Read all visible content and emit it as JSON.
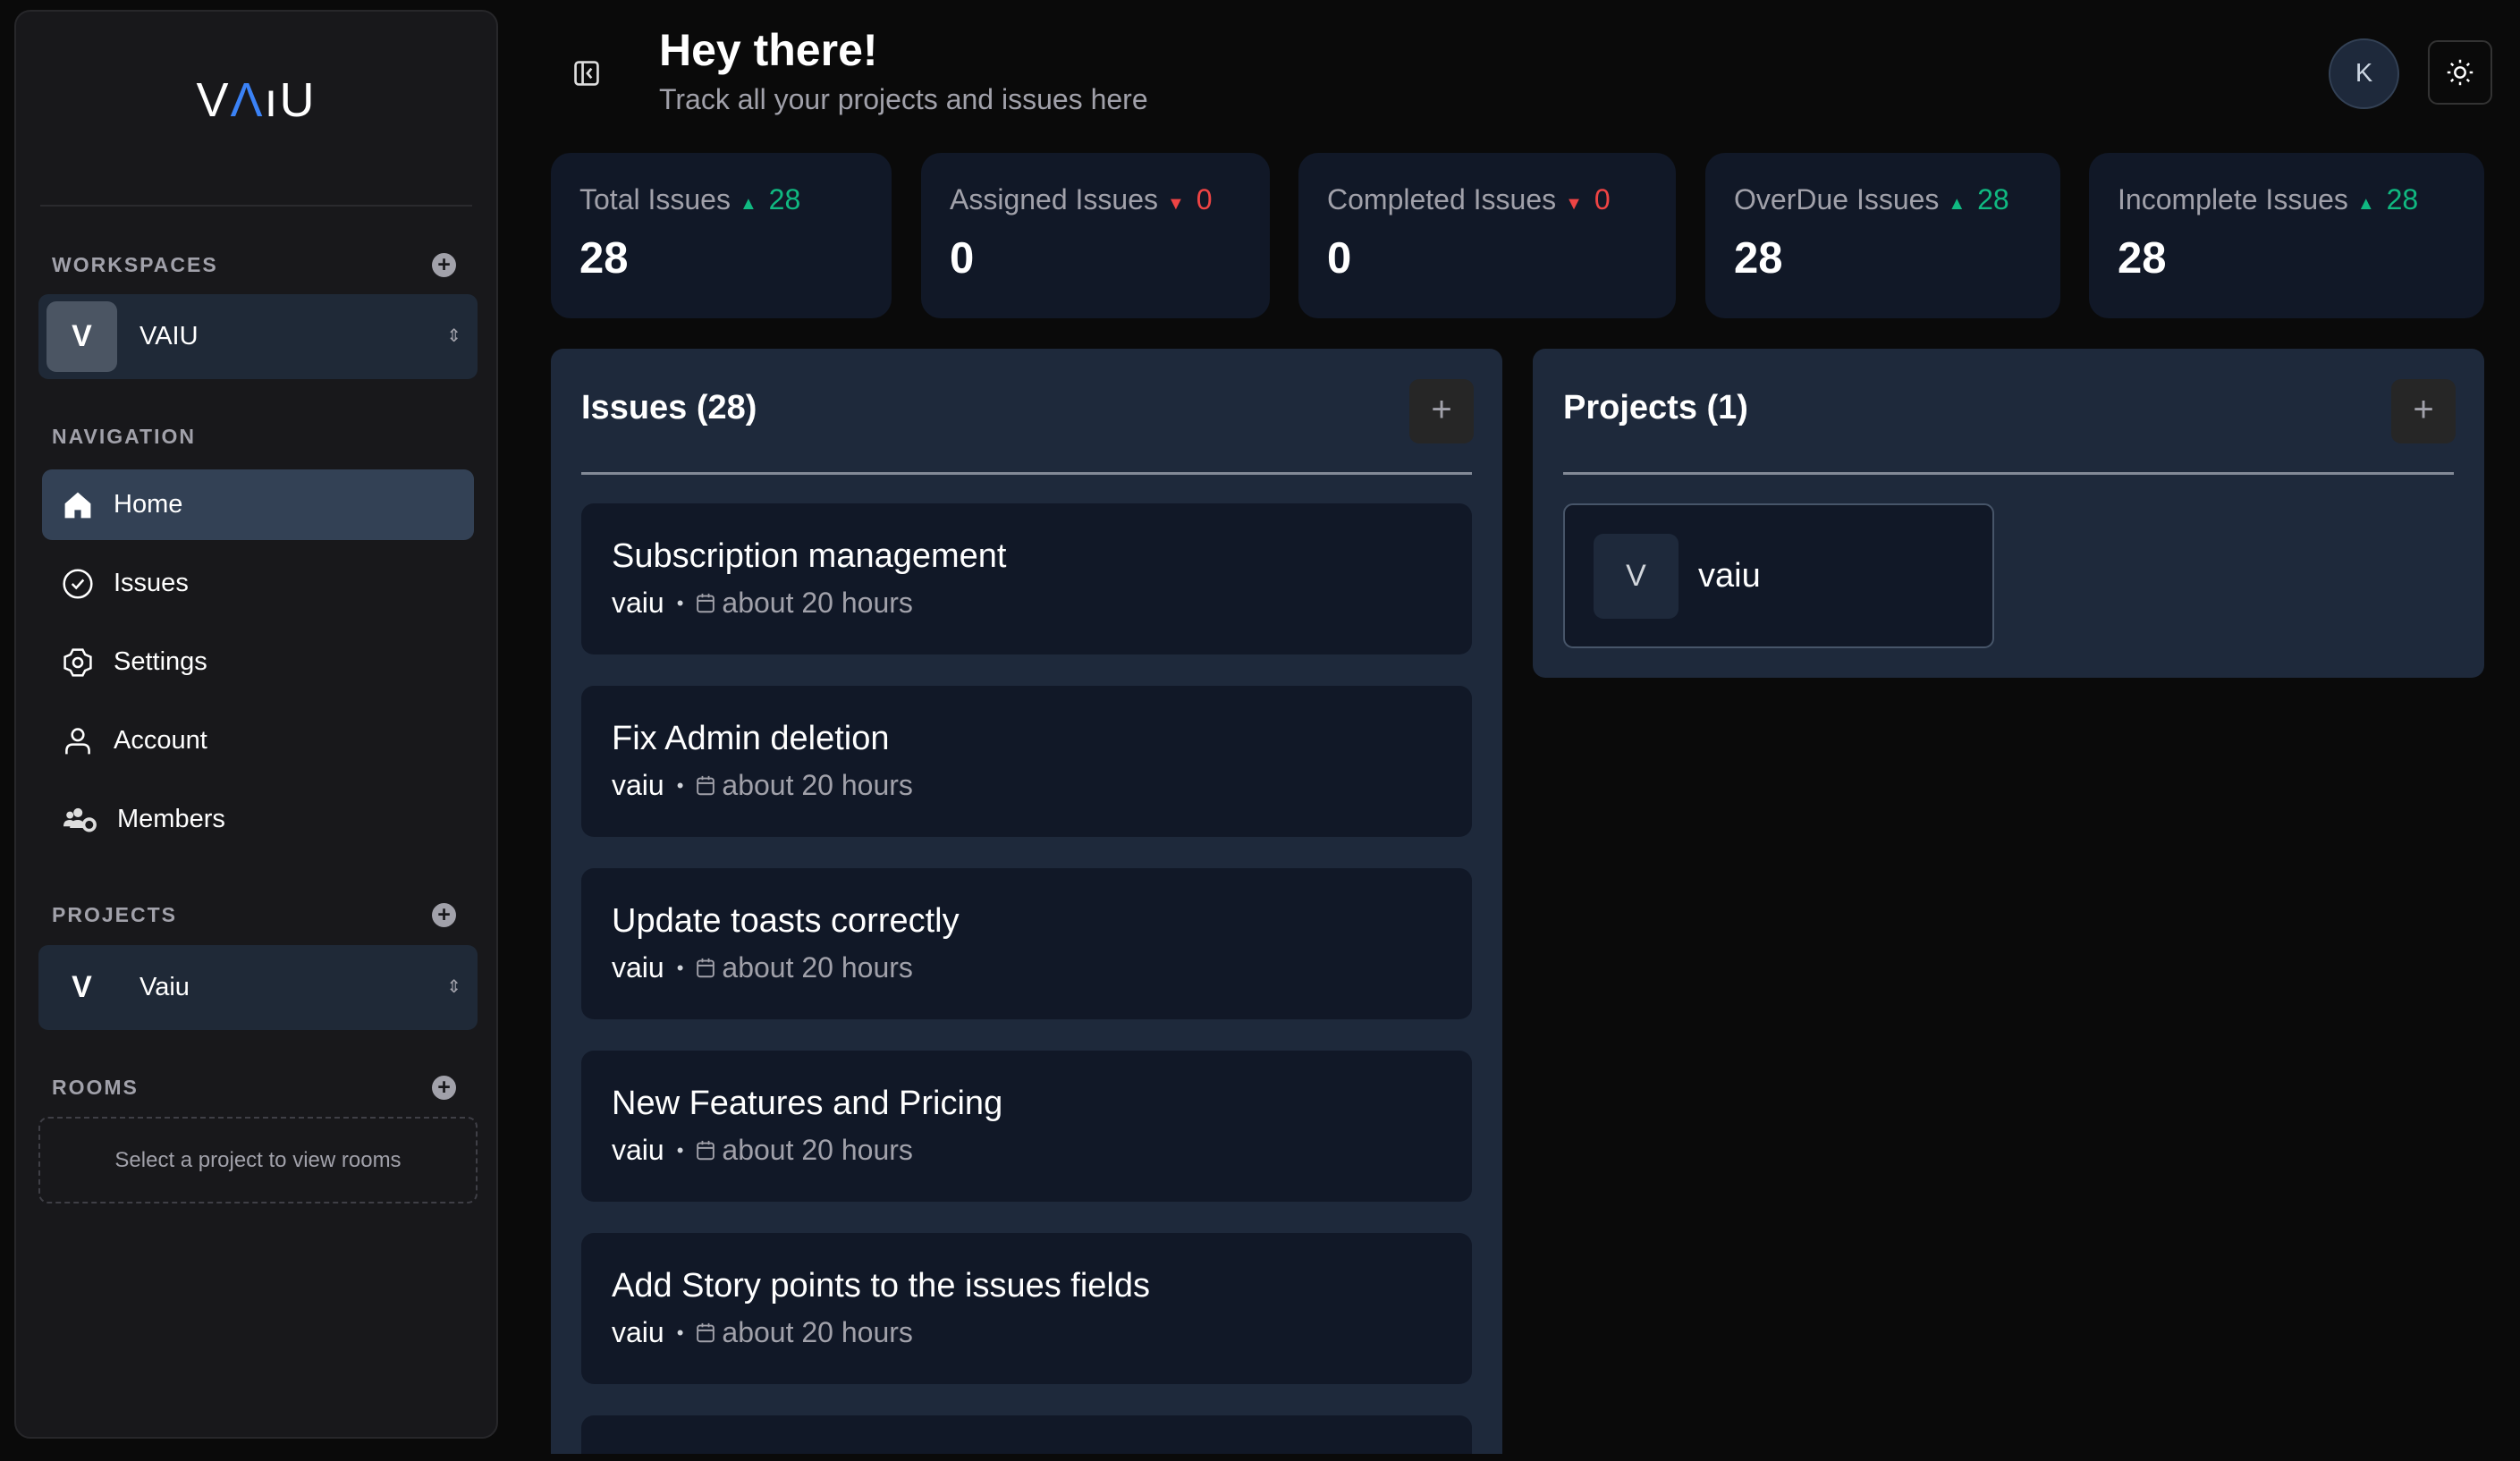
{
  "sidebar": {
    "logo": {
      "pre": "V",
      "accent": "Λ",
      "post": "ıU"
    },
    "workspaces": {
      "label": "WORKSPACES",
      "selected": {
        "initial": "V",
        "name": "VAIU"
      }
    },
    "navigation": {
      "label": "NAVIGATION",
      "items": [
        {
          "label": "Home",
          "icon": "home-icon",
          "active": true
        },
        {
          "label": "Issues",
          "icon": "check-circle-icon"
        },
        {
          "label": "Settings",
          "icon": "gear-icon"
        },
        {
          "label": "Account",
          "icon": "user-icon"
        },
        {
          "label": "Members",
          "icon": "users-gear-icon"
        }
      ]
    },
    "projects": {
      "label": "PROJECTS",
      "selected": {
        "initial": "V",
        "name": "Vaiu"
      }
    },
    "rooms": {
      "label": "ROOMS",
      "empty": "Select a project to view rooms"
    }
  },
  "header": {
    "title": "Hey there!",
    "subtitle": "Track all your projects and issues here",
    "avatar": "K"
  },
  "stats": [
    {
      "label": "Total Issues",
      "trend": "up",
      "delta": "28",
      "value": "28"
    },
    {
      "label": "Assigned Issues",
      "trend": "down",
      "delta": "0",
      "value": "0"
    },
    {
      "label": "Completed Issues",
      "trend": "down",
      "delta": "0",
      "value": "0"
    },
    {
      "label": "OverDue Issues",
      "trend": "up",
      "delta": "28",
      "value": "28"
    },
    {
      "label": "Incomplete Issues",
      "trend": "up",
      "delta": "28",
      "value": "28"
    }
  ],
  "colors": {
    "up": "#10b981",
    "down": "#ef4444",
    "accent": "#3b82f6"
  },
  "issues": {
    "title": "Issues (28)",
    "add": "+",
    "items": [
      {
        "title": "Subscription management",
        "project": "vaiu",
        "time": "about 20 hours"
      },
      {
        "title": "Fix Admin deletion",
        "project": "vaiu",
        "time": "about 20 hours"
      },
      {
        "title": "Update toasts correctly",
        "project": "vaiu",
        "time": "about 20 hours"
      },
      {
        "title": "New Features and Pricing",
        "project": "vaiu",
        "time": "about 20 hours"
      },
      {
        "title": "Add Story points to the issues fields",
        "project": "vaiu",
        "time": "about 20 hours"
      }
    ]
  },
  "projects": {
    "title": "Projects (1)",
    "add": "+",
    "items": [
      {
        "initial": "V",
        "name": "vaiu"
      }
    ]
  },
  "symbols": {
    "up": "▲",
    "down": "▼",
    "dot": "•",
    "chev": "⌃⌄"
  }
}
